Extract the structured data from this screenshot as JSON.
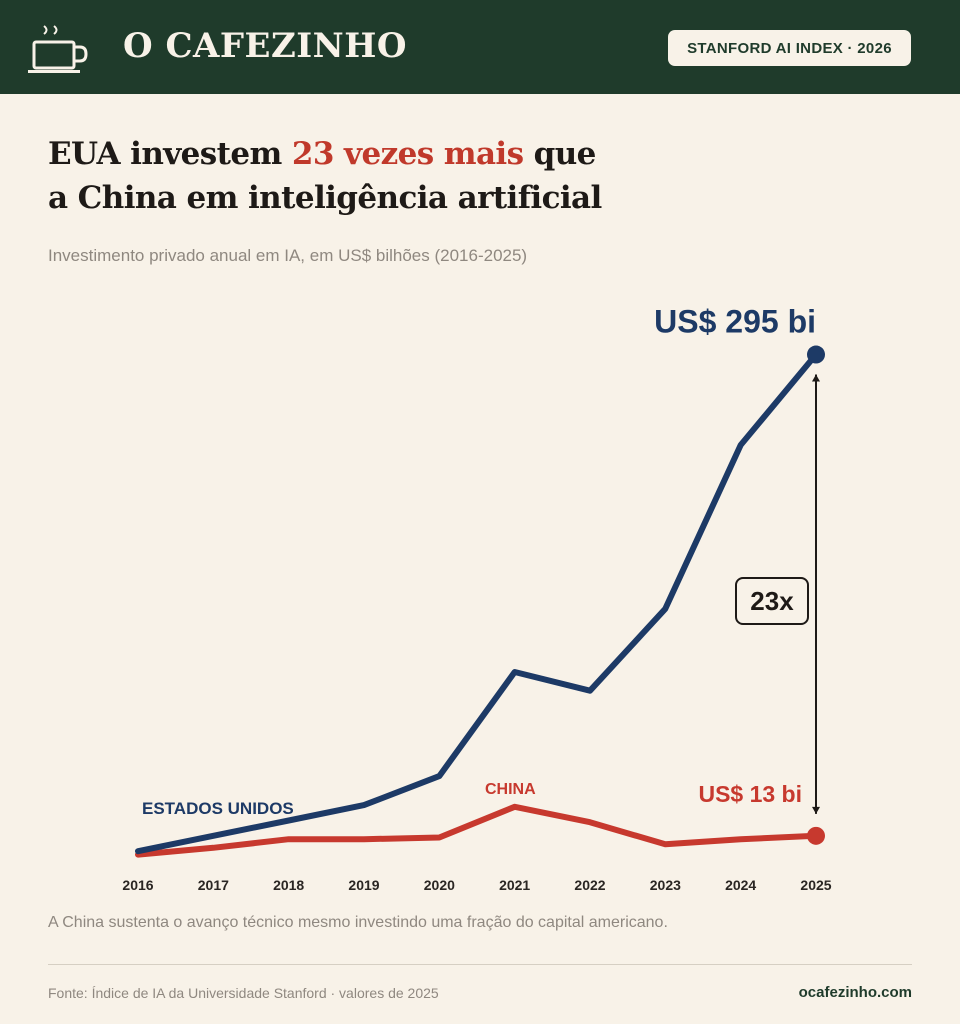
{
  "header": {
    "brand": "O CAFEZINHO",
    "badge": "STANFORD AI INDEX · 2026",
    "logo_icon": "coffee-cup-icon"
  },
  "headline": {
    "part1": "EUA investem ",
    "highlight": "23 vezes mais",
    "part2": " que",
    "line2": "a China em inteligência artificial"
  },
  "subtitle": "Investimento privado anual em IA, em US$ bilhões (2016-2025)",
  "chart_data": {
    "type": "line",
    "x": [
      "2016",
      "2017",
      "2018",
      "2019",
      "2020",
      "2021",
      "2022",
      "2023",
      "2024",
      "2025"
    ],
    "series": [
      {
        "name": "ESTADOS UNIDOS",
        "color": "#1d3a66",
        "values": [
          4,
          13,
          22,
          31,
          48,
          109,
          98,
          146,
          242,
          295
        ]
      },
      {
        "name": "CHINA",
        "color": "#c7392e",
        "values": [
          2,
          6,
          11,
          11,
          12,
          30,
          21,
          8,
          11,
          13
        ]
      }
    ],
    "ylim": [
      0,
      300
    ],
    "annotations": {
      "us_value": "US$ 295 bi",
      "china_value": "US$ 13 bi",
      "ratio": "23x"
    }
  },
  "footnote": "A China sustenta o avanço técnico mesmo investindo uma fração do capital americano.",
  "source": "Fonte: Índice de IA da Universidade Stanford · valores de 2025",
  "site": "ocafezinho.com",
  "colors": {
    "header_bg": "#1f3b2b",
    "page_bg": "#f8f2e8",
    "accent_red": "#c0392b",
    "us_blue": "#1d3a66"
  }
}
